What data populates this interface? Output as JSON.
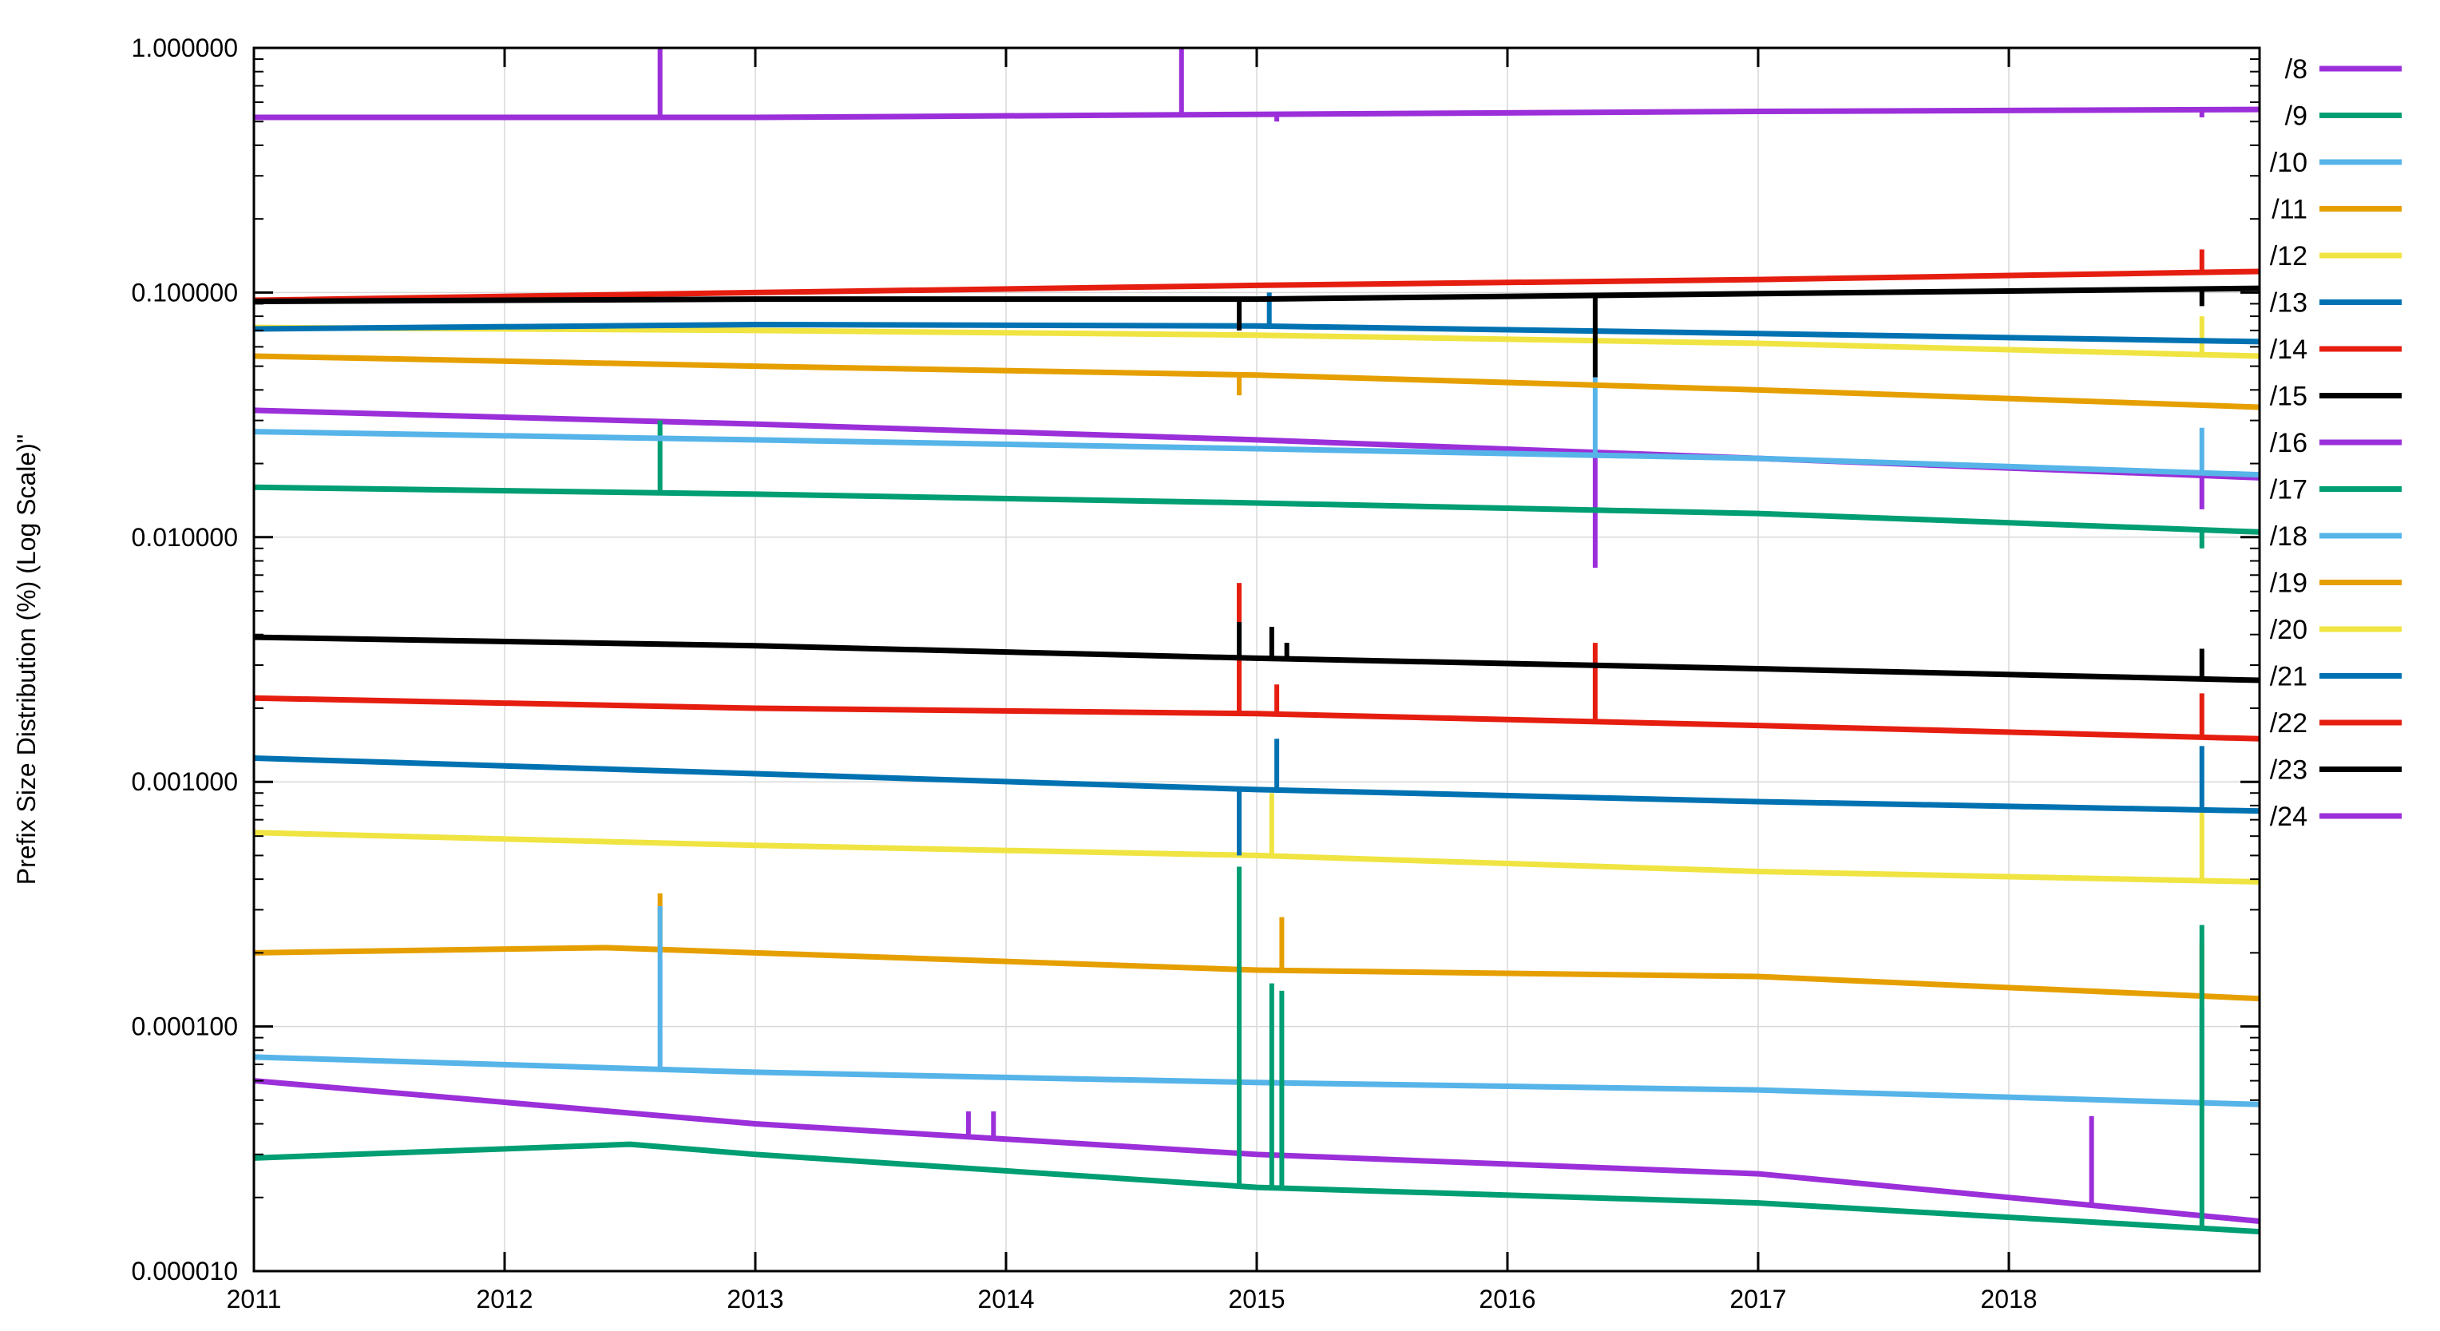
{
  "chart_data": {
    "type": "line",
    "title": "",
    "xlabel": "",
    "ylabel": "Prefix Size Distribution (%) (Log Scale)\"",
    "yscale": "log",
    "ylim": [
      1e-05,
      1.0
    ],
    "xlim": [
      2011,
      2019
    ],
    "grid": true,
    "legend_position": "right",
    "x_ticks": [
      "2011",
      "2012",
      "2013",
      "2014",
      "2015",
      "2016",
      "2017",
      "2018"
    ],
    "y_ticks": [
      "0.000010",
      "0.000100",
      "0.001000",
      "0.010000",
      "0.100000",
      "1.000000"
    ],
    "series": [
      {
        "name": "/8",
        "color": "#9b2fd9",
        "x": [
          2011,
          2013,
          2015,
          2017,
          2019
        ],
        "y": [
          0.52,
          0.52,
          0.535,
          0.55,
          0.56
        ],
        "spikes": [
          {
            "x": 2012.62,
            "y": 1.0
          },
          {
            "x": 2014.7,
            "y": 1.0
          },
          {
            "x": 2015.08,
            "y": 0.5
          },
          {
            "x": 2018.77,
            "y": 0.52
          }
        ]
      },
      {
        "name": "/9",
        "color": "#009e73",
        "x": [
          2011,
          2019
        ],
        "y": [
          null,
          null
        ],
        "spikes": []
      },
      {
        "name": "/10",
        "color": "#56b4e9",
        "x": [
          2011,
          2019
        ],
        "y": [
          null,
          null
        ],
        "spikes": []
      },
      {
        "name": "/11",
        "color": "#e69f00",
        "x": [
          2011,
          2019
        ],
        "y": [
          null,
          null
        ],
        "spikes": []
      },
      {
        "name": "/12",
        "color": "#f0e442",
        "x": [
          2011,
          2013,
          2015,
          2017,
          2019
        ],
        "y": [
          0.072,
          0.07,
          0.067,
          0.062,
          0.055
        ],
        "spikes": [
          {
            "x": 2018.77,
            "y": 0.08
          }
        ]
      },
      {
        "name": "/13",
        "color": "#0072b2",
        "x": [
          2011,
          2013,
          2015,
          2017,
          2019
        ],
        "y": [
          0.071,
          0.074,
          0.073,
          0.068,
          0.063
        ],
        "spikes": [
          {
            "x": 2015.05,
            "y": 0.1
          }
        ]
      },
      {
        "name": "/14",
        "color": "#e51e10",
        "x": [
          2011,
          2013,
          2015,
          2017,
          2019
        ],
        "y": [
          0.093,
          0.1,
          0.107,
          0.113,
          0.122
        ],
        "spikes": [
          {
            "x": 2018.77,
            "y": 0.15
          }
        ]
      },
      {
        "name": "/15",
        "color": "#000000",
        "x": [
          2011,
          2013,
          2015,
          2017,
          2019
        ],
        "y": [
          0.092,
          0.094,
          0.094,
          0.099,
          0.104
        ],
        "spikes": [
          {
            "x": 2014.93,
            "y": 0.07
          },
          {
            "x": 2016.35,
            "y": 0.045
          },
          {
            "x": 2018.77,
            "y": 0.088
          }
        ]
      },
      {
        "name": "/16",
        "color": "#9b2fd9",
        "x": [
          2011,
          2013,
          2015,
          2017,
          2019
        ],
        "y": [
          0.033,
          0.029,
          0.025,
          0.021,
          0.0175
        ],
        "spikes": [
          {
            "x": 2016.35,
            "y": 0.0075
          },
          {
            "x": 2018.77,
            "y": 0.013
          }
        ]
      },
      {
        "name": "/17",
        "color": "#009e73",
        "x": [
          2011,
          2013,
          2015,
          2017,
          2019
        ],
        "y": [
          0.016,
          0.015,
          0.0138,
          0.0125,
          0.0105
        ],
        "spikes": [
          {
            "x": 2012.62,
            "y": 0.03
          },
          {
            "x": 2018.77,
            "y": 0.009
          }
        ]
      },
      {
        "name": "/18",
        "color": "#56b4e9",
        "x": [
          2011,
          2013,
          2015,
          2017,
          2019
        ],
        "y": [
          0.027,
          0.025,
          0.023,
          0.021,
          0.018
        ],
        "spikes": [
          {
            "x": 2016.35,
            "y": 0.045
          },
          {
            "x": 2018.77,
            "y": 0.028
          }
        ]
      },
      {
        "name": "/19",
        "color": "#e69f00",
        "x": [
          2011,
          2013,
          2015,
          2017,
          2019
        ],
        "y": [
          0.055,
          0.05,
          0.046,
          0.04,
          0.034
        ],
        "spikes": [
          {
            "x": 2014.93,
            "y": 0.038
          }
        ]
      },
      {
        "name": "/20",
        "color": "#f0e442",
        "x": [
          2011,
          2019
        ],
        "y": [
          null,
          null
        ],
        "spikes": []
      },
      {
        "name": "/21",
        "color": "#0072b2",
        "x": [
          2011,
          2013,
          2015,
          2017,
          2019
        ],
        "y": [
          0.00125,
          0.00108,
          0.00093,
          0.00083,
          0.00076
        ],
        "spikes": [
          {
            "x": 2014.93,
            "y": 0.0005
          },
          {
            "x": 2015.08,
            "y": 0.0015
          },
          {
            "x": 2018.77,
            "y": 0.0014
          }
        ]
      },
      {
        "name": "/22",
        "color": "#e51e10",
        "x": [
          2011,
          2013,
          2015,
          2017,
          2019
        ],
        "y": [
          0.0022,
          0.002,
          0.0019,
          0.0017,
          0.0015
        ],
        "spikes": [
          {
            "x": 2014.93,
            "y": 0.0065
          },
          {
            "x": 2015.08,
            "y": 0.0025
          },
          {
            "x": 2016.35,
            "y": 0.0037
          },
          {
            "x": 2018.77,
            "y": 0.0023
          }
        ]
      },
      {
        "name": "/23",
        "color": "#000000",
        "x": [
          2011,
          2013,
          2015,
          2017,
          2019
        ],
        "y": [
          0.0039,
          0.0036,
          0.0032,
          0.0029,
          0.0026
        ],
        "spikes": [
          {
            "x": 2014.93,
            "y": 0.0045
          },
          {
            "x": 2015.06,
            "y": 0.0043
          },
          {
            "x": 2015.12,
            "y": 0.0037
          },
          {
            "x": 2018.77,
            "y": 0.0035
          }
        ]
      },
      {
        "name": "/24",
        "color": "#9b2fd9",
        "x": [
          2011,
          2019
        ],
        "y": [
          null,
          null
        ],
        "spikes": []
      }
    ],
    "unlabeled_series": [
      {
        "color": "#f0e442",
        "x": [
          2011,
          2013,
          2015,
          2017,
          2019
        ],
        "y": [
          0.00062,
          0.00055,
          0.0005,
          0.00043,
          0.00039
        ],
        "spikes": [
          {
            "x": 2014.93,
            "y": 0.00095
          },
          {
            "x": 2015.06,
            "y": 0.0009
          },
          {
            "x": 2018.77,
            "y": 0.00075
          }
        ]
      },
      {
        "color": "#e69f00",
        "x": [
          2011,
          2012.4,
          2013,
          2015,
          2017,
          2019
        ],
        "y": [
          0.0002,
          0.00021,
          0.0002,
          0.00017,
          0.00016,
          0.00013
        ],
        "spikes": [
          {
            "x": 2012.62,
            "y": 0.00035
          },
          {
            "x": 2015.1,
            "y": 0.00028
          },
          {
            "x": 2018.77,
            "y": 0.00022
          }
        ]
      },
      {
        "color": "#56b4e9",
        "x": [
          2011,
          2013,
          2015,
          2017,
          2019
        ],
        "y": [
          7.5e-05,
          6.5e-05,
          5.9e-05,
          5.5e-05,
          4.8e-05
        ],
        "spikes": [
          {
            "x": 2012.62,
            "y": 0.00031
          },
          {
            "x": 2018.77,
            "y": 0.00012
          }
        ]
      },
      {
        "color": "#9b2fd9",
        "x": [
          2011,
          2013,
          2015,
          2017,
          2019
        ],
        "y": [
          6e-05,
          4e-05,
          3e-05,
          2.5e-05,
          1.6e-05
        ],
        "spikes": [
          {
            "x": 2013.85,
            "y": 4.5e-05
          },
          {
            "x": 2013.95,
            "y": 4.5e-05
          },
          {
            "x": 2018.33,
            "y": 4.3e-05
          }
        ]
      },
      {
        "color": "#009e73",
        "x": [
          2011,
          2012.5,
          2013,
          2015,
          2017,
          2019
        ],
        "y": [
          2.9e-05,
          3.3e-05,
          3e-05,
          2.2e-05,
          1.9e-05,
          1.45e-05
        ],
        "spikes": [
          {
            "x": 2014.93,
            "y": 0.00045
          },
          {
            "x": 2015.06,
            "y": 0.00015
          },
          {
            "x": 2015.1,
            "y": 0.00014
          },
          {
            "x": 2018.77,
            "y": 0.00026
          }
        ]
      }
    ]
  }
}
